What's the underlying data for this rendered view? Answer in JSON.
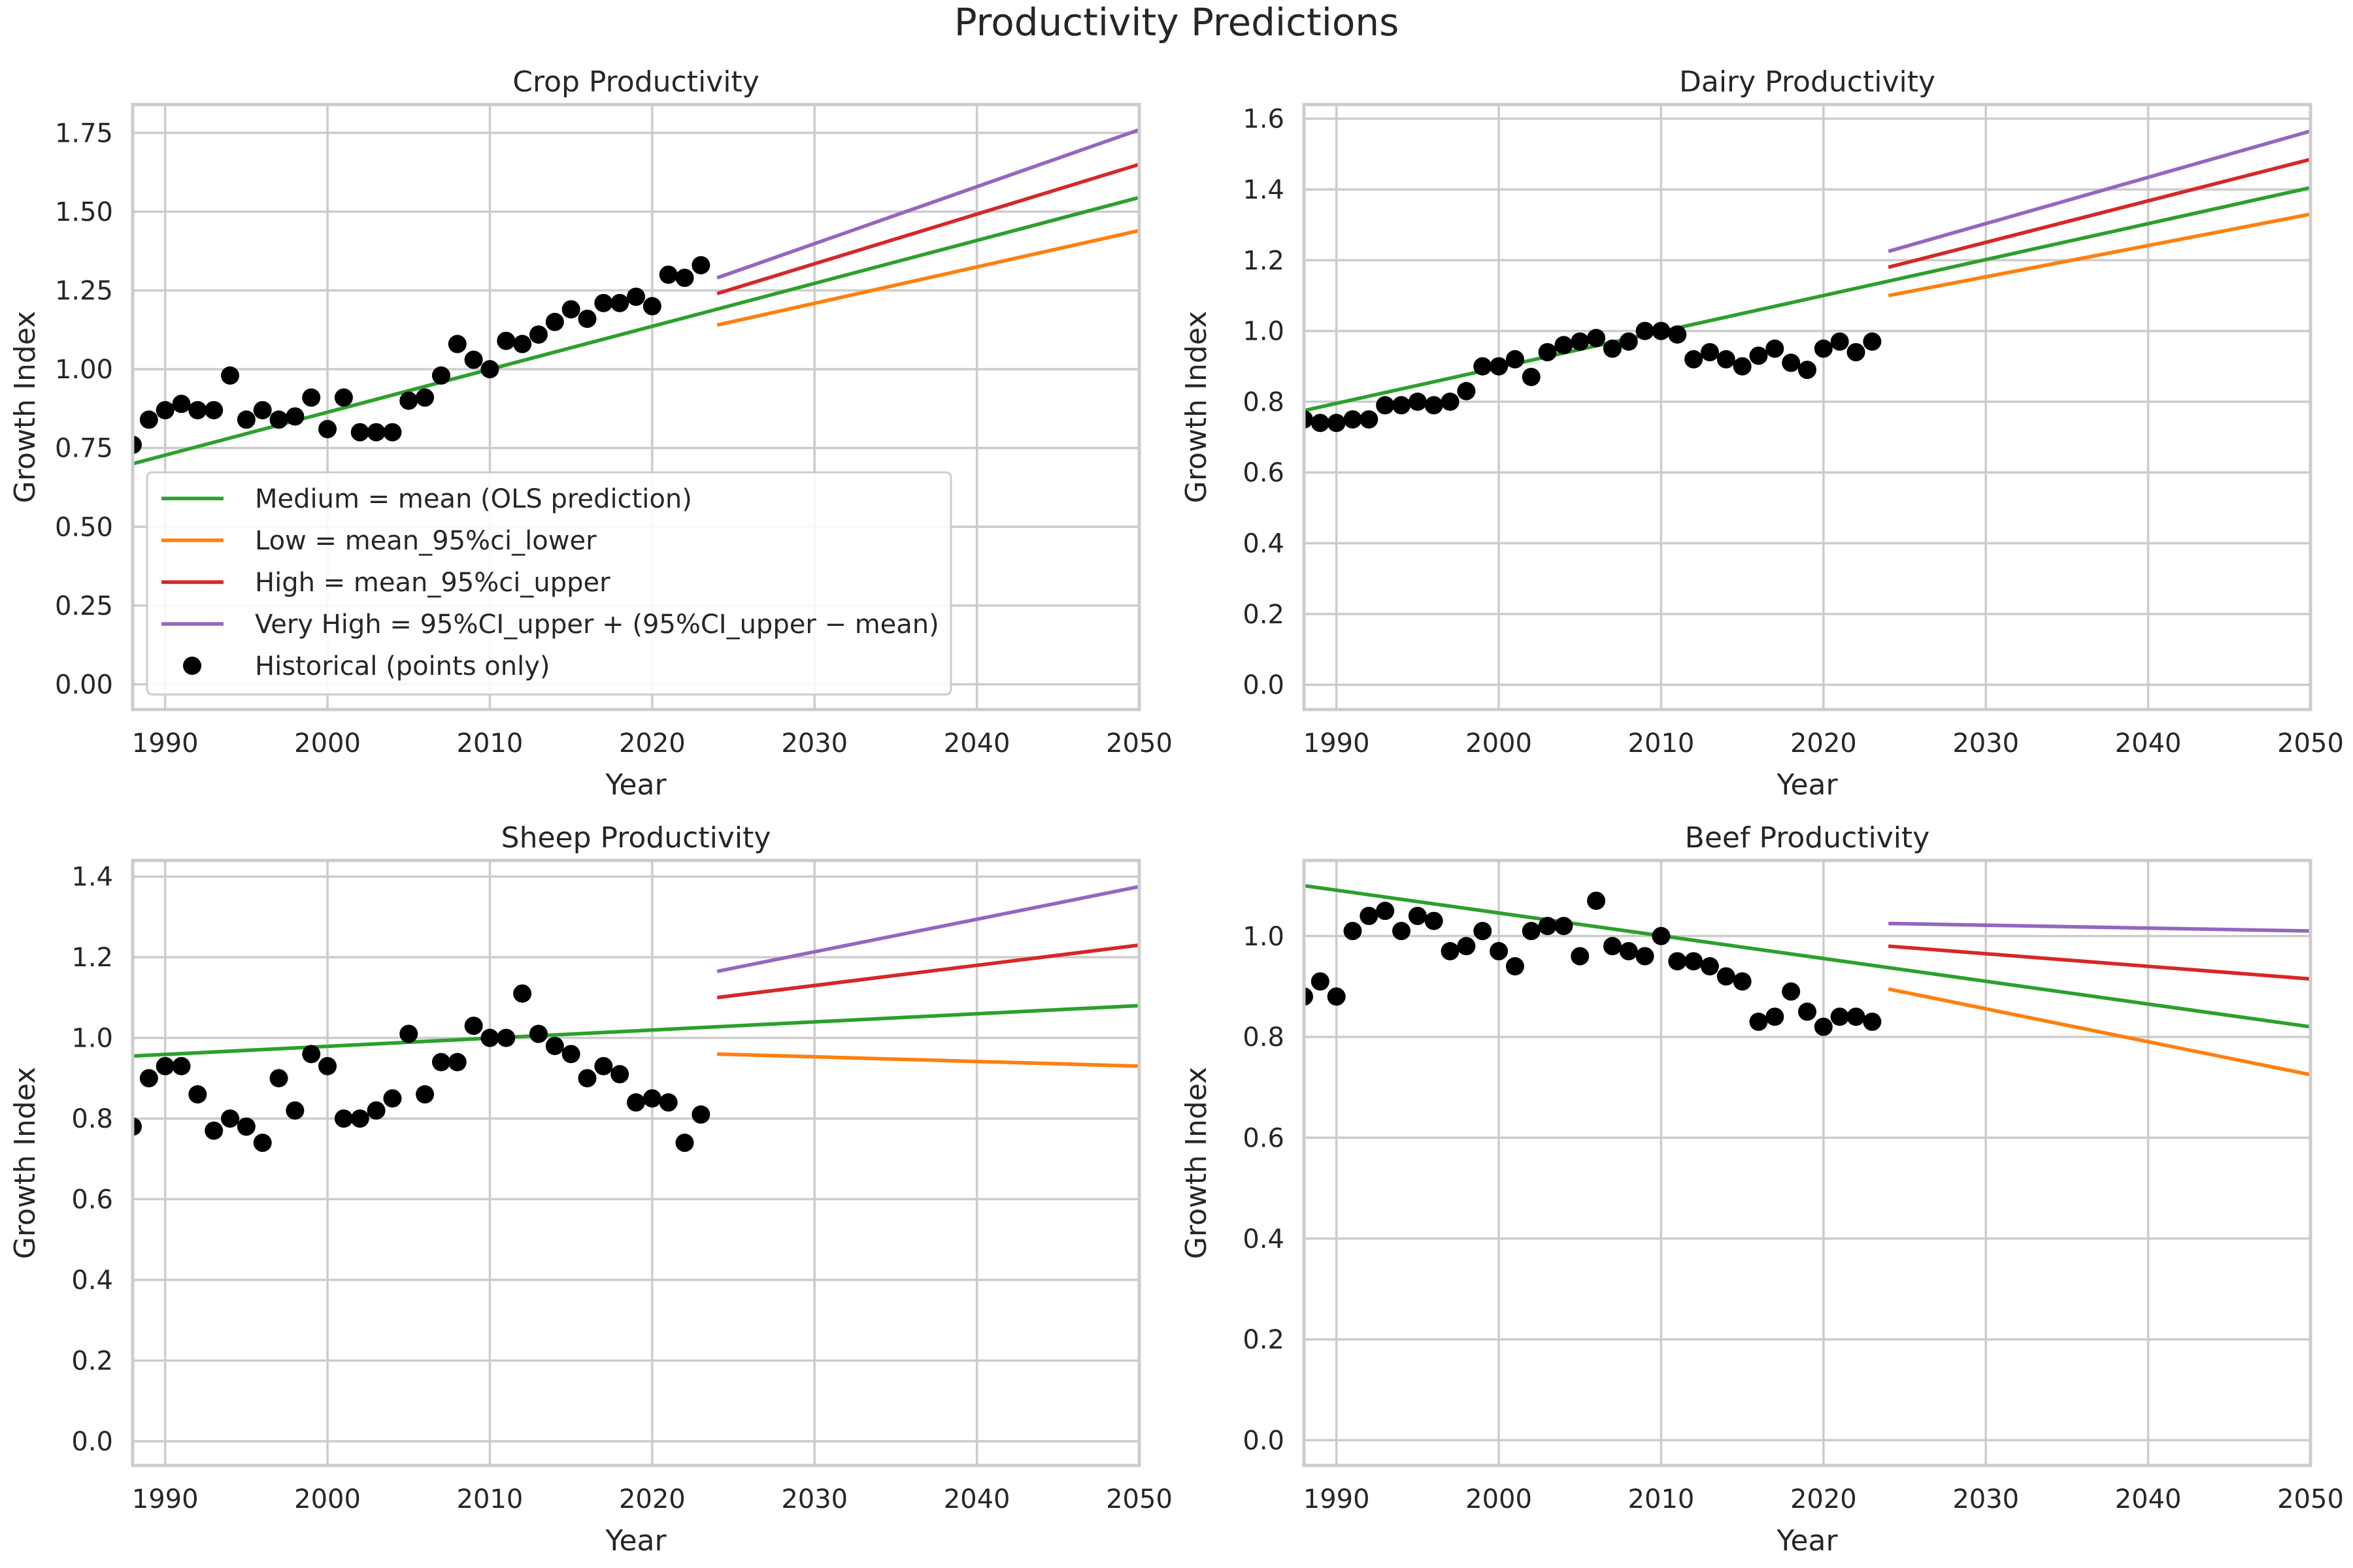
{
  "figure": {
    "title": "Productivity Predictions"
  },
  "chart_data": [
    {
      "type": "line",
      "title": "Crop Productivity",
      "xlabel": "Year",
      "ylabel": "Growth Index",
      "xlim": [
        1988,
        2050
      ],
      "ylim": [
        -0.08,
        1.84
      ],
      "xticks": [
        1990,
        2000,
        2010,
        2020,
        2030,
        2040,
        2050
      ],
      "yticks": [
        "0.00",
        "0.25",
        "0.50",
        "0.75",
        "1.00",
        "1.25",
        "1.50",
        "1.75"
      ],
      "grid": true,
      "legend_position": "lower-left",
      "legend": [
        {
          "label": "Medium = mean (OLS prediction)",
          "color": "#2ca02c",
          "marker": "line"
        },
        {
          "label": "Low = mean_95%ci_lower",
          "color": "#ff7f0e",
          "marker": "line"
        },
        {
          "label": "High = mean_95%ci_upper",
          "color": "#d62728",
          "marker": "line"
        },
        {
          "label": "Very High = 95%CI_upper + (95%CI_upper − mean)",
          "color": "#9467bd",
          "marker": "line"
        },
        {
          "label": "Historical (points only)",
          "color": "#000000",
          "marker": "dot"
        }
      ],
      "series": [
        {
          "name": "Medium = mean (OLS prediction)",
          "color": "#2ca02c",
          "x": [
            1988,
            2050
          ],
          "y": [
            0.7,
            1.545
          ]
        },
        {
          "name": "Low = mean_95%ci_lower",
          "color": "#ff7f0e",
          "x": [
            2024,
            2050
          ],
          "y": [
            1.14,
            1.44
          ]
        },
        {
          "name": "High = mean_95%ci_upper",
          "color": "#d62728",
          "x": [
            2024,
            2050
          ],
          "y": [
            1.24,
            1.65
          ]
        },
        {
          "name": "Very High = 95%CI_upper + (95%CI_upper − mean)",
          "color": "#9467bd",
          "x": [
            2024,
            2050
          ],
          "y": [
            1.29,
            1.76
          ]
        }
      ],
      "historical": {
        "name": "Historical (points only)",
        "x": [
          1988,
          1989,
          1990,
          1991,
          1992,
          1993,
          1994,
          1995,
          1996,
          1997,
          1998,
          1999,
          2000,
          2001,
          2002,
          2003,
          2004,
          2005,
          2006,
          2007,
          2008,
          2009,
          2010,
          2011,
          2012,
          2013,
          2014,
          2015,
          2016,
          2017,
          2018,
          2019,
          2020,
          2021,
          2022,
          2023
        ],
        "y": [
          0.76,
          0.84,
          0.87,
          0.89,
          0.87,
          0.87,
          0.98,
          0.84,
          0.87,
          0.84,
          0.85,
          0.91,
          0.81,
          0.91,
          0.8,
          0.8,
          0.8,
          0.9,
          0.91,
          0.98,
          1.08,
          1.03,
          1.0,
          1.09,
          1.08,
          1.11,
          1.15,
          1.19,
          1.16,
          1.21,
          1.21,
          1.23,
          1.2,
          1.3,
          1.29,
          1.33
        ]
      }
    },
    {
      "type": "line",
      "title": "Dairy Productivity",
      "xlabel": "Year",
      "ylabel": "Growth Index",
      "xlim": [
        1988,
        2050
      ],
      "ylim": [
        -0.07,
        1.64
      ],
      "xticks": [
        1990,
        2000,
        2010,
        2020,
        2030,
        2040,
        2050
      ],
      "yticks": [
        "0.0",
        "0.2",
        "0.4",
        "0.6",
        "0.8",
        "1.0",
        "1.2",
        "1.4",
        "1.6"
      ],
      "grid": true,
      "series": [
        {
          "name": "Medium = mean (OLS prediction)",
          "color": "#2ca02c",
          "x": [
            1988,
            2050
          ],
          "y": [
            0.775,
            1.405
          ]
        },
        {
          "name": "Low = mean_95%ci_lower",
          "color": "#ff7f0e",
          "x": [
            2024,
            2050
          ],
          "y": [
            1.1,
            1.33
          ]
        },
        {
          "name": "High = mean_95%ci_upper",
          "color": "#d62728",
          "x": [
            2024,
            2050
          ],
          "y": [
            1.18,
            1.485
          ]
        },
        {
          "name": "Very High = 95%CI_upper + (95%CI_upper − mean)",
          "color": "#9467bd",
          "x": [
            2024,
            2050
          ],
          "y": [
            1.225,
            1.565
          ]
        }
      ],
      "historical": {
        "name": "Historical (points only)",
        "x": [
          1988,
          1989,
          1990,
          1991,
          1992,
          1993,
          1994,
          1995,
          1996,
          1997,
          1998,
          1999,
          2000,
          2001,
          2002,
          2003,
          2004,
          2005,
          2006,
          2007,
          2008,
          2009,
          2010,
          2011,
          2012,
          2013,
          2014,
          2015,
          2016,
          2017,
          2018,
          2019,
          2020,
          2021,
          2022,
          2023
        ],
        "y": [
          0.75,
          0.74,
          0.74,
          0.75,
          0.75,
          0.79,
          0.79,
          0.8,
          0.79,
          0.8,
          0.83,
          0.9,
          0.9,
          0.92,
          0.87,
          0.94,
          0.96,
          0.97,
          0.98,
          0.95,
          0.97,
          1.0,
          1.0,
          0.99,
          0.92,
          0.94,
          0.92,
          0.9,
          0.93,
          0.95,
          0.91,
          0.89,
          0.95,
          0.97,
          0.94,
          0.97
        ]
      }
    },
    {
      "type": "line",
      "title": "Sheep Productivity",
      "xlabel": "Year",
      "ylabel": "Growth Index",
      "xlim": [
        1988,
        2050
      ],
      "ylim": [
        -0.06,
        1.44
      ],
      "xticks": [
        1990,
        2000,
        2010,
        2020,
        2030,
        2040,
        2050
      ],
      "yticks": [
        "0.0",
        "0.2",
        "0.4",
        "0.6",
        "0.8",
        "1.0",
        "1.2",
        "1.4"
      ],
      "grid": true,
      "series": [
        {
          "name": "Medium = mean (OLS prediction)",
          "color": "#2ca02c",
          "x": [
            1988,
            2050
          ],
          "y": [
            0.955,
            1.08
          ]
        },
        {
          "name": "Low = mean_95%ci_lower",
          "color": "#ff7f0e",
          "x": [
            2024,
            2050
          ],
          "y": [
            0.96,
            0.93
          ]
        },
        {
          "name": "High = mean_95%ci_upper",
          "color": "#d62728",
          "x": [
            2024,
            2050
          ],
          "y": [
            1.1,
            1.23
          ]
        },
        {
          "name": "Very High = 95%CI_upper + (95%CI_upper − mean)",
          "color": "#9467bd",
          "x": [
            2024,
            2050
          ],
          "y": [
            1.165,
            1.375
          ]
        }
      ],
      "historical": {
        "name": "Historical (points only)",
        "x": [
          1988,
          1989,
          1990,
          1991,
          1992,
          1993,
          1994,
          1995,
          1996,
          1997,
          1998,
          1999,
          2000,
          2001,
          2002,
          2003,
          2004,
          2005,
          2006,
          2007,
          2008,
          2009,
          2010,
          2011,
          2012,
          2013,
          2014,
          2015,
          2016,
          2017,
          2018,
          2019,
          2020,
          2021,
          2022,
          2023
        ],
        "y": [
          0.78,
          0.9,
          0.93,
          0.93,
          0.86,
          0.77,
          0.8,
          0.78,
          0.74,
          0.9,
          0.82,
          0.96,
          0.93,
          0.8,
          0.8,
          0.82,
          0.85,
          1.01,
          0.86,
          0.94,
          0.94,
          1.03,
          1.0,
          1.0,
          1.11,
          1.01,
          0.98,
          0.96,
          0.9,
          0.93,
          0.91,
          0.84,
          0.85,
          0.84,
          0.74,
          0.81
        ]
      }
    },
    {
      "type": "line",
      "title": "Beef Productivity",
      "xlabel": "Year",
      "ylabel": "Growth Index",
      "xlim": [
        1988,
        2050
      ],
      "ylim": [
        -0.05,
        1.15
      ],
      "xticks": [
        1990,
        2000,
        2010,
        2020,
        2030,
        2040,
        2050
      ],
      "yticks": [
        "0.0",
        "0.2",
        "0.4",
        "0.6",
        "0.8",
        "1.0"
      ],
      "grid": true,
      "series": [
        {
          "name": "Medium = mean (OLS prediction)",
          "color": "#2ca02c",
          "x": [
            1988,
            2050
          ],
          "y": [
            1.1,
            0.82
          ]
        },
        {
          "name": "Low = mean_95%ci_lower",
          "color": "#ff7f0e",
          "x": [
            2024,
            2050
          ],
          "y": [
            0.895,
            0.725
          ]
        },
        {
          "name": "High = mean_95%ci_upper",
          "color": "#d62728",
          "x": [
            2024,
            2050
          ],
          "y": [
            0.98,
            0.915
          ]
        },
        {
          "name": "Very High = 95%CI_upper + (95%CI_upper − mean)",
          "color": "#9467bd",
          "x": [
            2024,
            2050
          ],
          "y": [
            1.025,
            1.01
          ]
        }
      ],
      "historical": {
        "name": "Historical (points only)",
        "x": [
          1988,
          1989,
          1990,
          1991,
          1992,
          1993,
          1994,
          1995,
          1996,
          1997,
          1998,
          1999,
          2000,
          2001,
          2002,
          2003,
          2004,
          2005,
          2006,
          2007,
          2008,
          2009,
          2010,
          2011,
          2012,
          2013,
          2014,
          2015,
          2016,
          2017,
          2018,
          2019,
          2020,
          2021,
          2022,
          2023
        ],
        "y": [
          0.88,
          0.91,
          0.88,
          1.01,
          1.04,
          1.05,
          1.01,
          1.04,
          1.03,
          0.97,
          0.98,
          1.01,
          0.97,
          0.94,
          1.01,
          1.02,
          1.02,
          0.96,
          1.07,
          0.98,
          0.97,
          0.96,
          1.0,
          0.95,
          0.95,
          0.94,
          0.92,
          0.91,
          0.83,
          0.84,
          0.89,
          0.85,
          0.82,
          0.84,
          0.84,
          0.83
        ]
      }
    }
  ]
}
